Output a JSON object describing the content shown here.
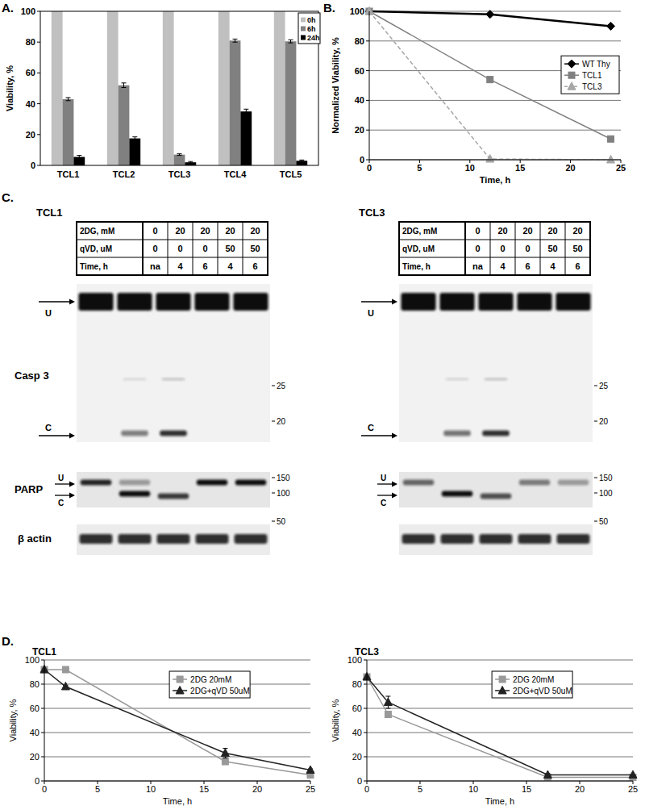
{
  "chart_data": [
    {
      "panel": "A.",
      "type": "bar",
      "categories": [
        "TCL1",
        "TCL2",
        "TCL3",
        "TCL4",
        "TCL5"
      ],
      "y_label": "Viability, %",
      "ylim": [
        0,
        100
      ],
      "yticks": [
        0,
        20,
        40,
        60,
        80,
        100
      ],
      "legend": "top-right",
      "series": [
        {
          "name": "0h",
          "color": "#c0c0c0",
          "values": [
            100,
            100,
            100,
            100,
            100
          ]
        },
        {
          "name": "6h",
          "color": "#808080",
          "values": [
            43,
            52,
            7,
            81,
            80.5
          ],
          "errors": [
            1,
            1.5,
            0.5,
            1,
            1
          ]
        },
        {
          "name": "24h",
          "color": "#000000",
          "values": [
            5.5,
            17.5,
            2,
            35,
            3
          ],
          "errors": [
            1,
            1,
            0.5,
            1.5,
            0.5
          ]
        }
      ]
    },
    {
      "panel": "B.",
      "type": "line",
      "x": [
        0,
        12,
        24
      ],
      "x_label": "Time, h",
      "y_label": "Normalized Viability, %",
      "xlim": [
        0,
        25
      ],
      "xticks": [
        0,
        5,
        10,
        15,
        20,
        25
      ],
      "ylim": [
        0,
        100
      ],
      "yticks": [
        0,
        20,
        40,
        60,
        80,
        100
      ],
      "grid": true,
      "legend": "right",
      "series": [
        {
          "name": "WT Thy",
          "color": "#000000",
          "marker": "diamond",
          "line_style": "solid",
          "values": [
            100,
            98,
            90
          ]
        },
        {
          "name": "TCL1",
          "color": "#808080",
          "marker": "square",
          "line_style": "solid",
          "values": [
            100,
            54,
            14
          ]
        },
        {
          "name": "TCL3",
          "color": "#a6a6a6",
          "marker": "triangle",
          "line_style": "dashed",
          "values": [
            100,
            0.5,
            0
          ]
        }
      ]
    },
    {
      "panel": "D.",
      "title": "TCL1",
      "type": "line",
      "x": [
        0,
        2,
        17,
        25
      ],
      "x_label": "Time, h",
      "y_label": "Viability, %",
      "xlim": [
        0,
        25
      ],
      "xticks": [
        0,
        5,
        10,
        15,
        20,
        25
      ],
      "ylim": [
        0,
        100
      ],
      "yticks": [
        0,
        20,
        40,
        60,
        80,
        100
      ],
      "grid": true,
      "legend": "top",
      "series": [
        {
          "name": "2DG 20mM",
          "color": "#999999",
          "marker": "square",
          "line_style": "solid",
          "values": [
            92,
            92,
            16,
            5
          ],
          "errors": [
            0,
            2,
            2,
            1
          ]
        },
        {
          "name": "2DG+qVD 50uM",
          "color": "#222222",
          "marker": "triangle",
          "line_style": "solid",
          "values": [
            92,
            78,
            23,
            9
          ],
          "errors": [
            0,
            1,
            4,
            1
          ]
        }
      ]
    },
    {
      "title": "TCL3",
      "type": "line",
      "x": [
        0,
        2,
        17,
        25
      ],
      "x_label": "Time, h",
      "y_label": "Viability, %",
      "xlim": [
        0,
        25
      ],
      "xticks": [
        0,
        5,
        10,
        15,
        20,
        25
      ],
      "ylim": [
        0,
        100
      ],
      "yticks": [
        0,
        20,
        40,
        60,
        80,
        100
      ],
      "grid": true,
      "legend": "top",
      "series": [
        {
          "name": "2DG 20mM",
          "color": "#999999",
          "marker": "square",
          "line_style": "solid",
          "values": [
            86,
            55,
            3,
            3
          ],
          "errors": [
            0,
            2,
            1,
            0
          ]
        },
        {
          "name": "2DG+qVD 50uM",
          "color": "#222222",
          "marker": "triangle",
          "line_style": "solid",
          "values": [
            86,
            65,
            5,
            5
          ],
          "errors": [
            0,
            5,
            1,
            0
          ]
        }
      ]
    }
  ],
  "panel_c": {
    "panel": "C.",
    "proteins": [
      {
        "label": "Casp 3",
        "bands": [
          "U",
          "C"
        ],
        "mw": [
          25,
          20
        ]
      },
      {
        "label": "PARP",
        "bands": [
          "U",
          "C"
        ],
        "mw": [
          150,
          100
        ]
      },
      {
        "label": "β actin",
        "mw": [
          50
        ]
      }
    ],
    "blots": [
      {
        "title": "TCL1",
        "conditions": [
          {
            "label": "2DG, mM",
            "values": [
              0,
              20,
              20,
              20,
              20
            ]
          },
          {
            "label": "qVD, uM",
            "values": [
              0,
              0,
              0,
              50,
              50
            ]
          },
          {
            "label": "Time, h",
            "values": [
              "na",
              4,
              6,
              4,
              6
            ]
          }
        ]
      },
      {
        "title": "TCL3",
        "conditions": [
          {
            "label": "2DG, mM",
            "values": [
              0,
              20,
              20,
              20,
              20
            ]
          },
          {
            "label": "qVD, uM",
            "values": [
              0,
              0,
              0,
              50,
              50
            ]
          },
          {
            "label": "Time, h",
            "values": [
              "na",
              4,
              6,
              4,
              6
            ]
          }
        ]
      }
    ]
  }
}
